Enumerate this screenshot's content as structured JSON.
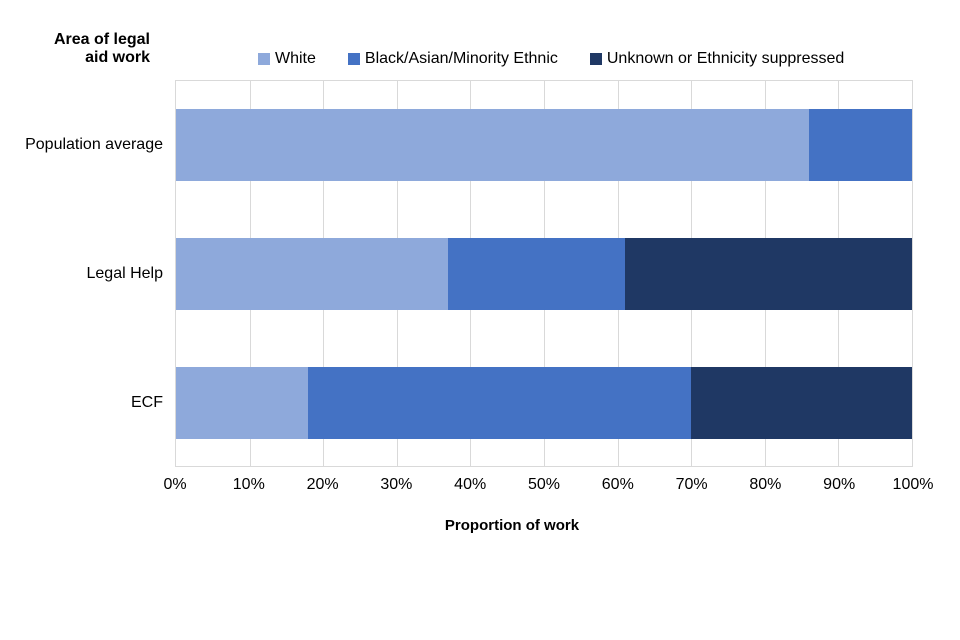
{
  "title": {
    "line1": "Area of legal",
    "line2": "aid work"
  },
  "colors": {
    "series_white": "#8EA9DB",
    "series_bame": "#4472C4",
    "series_unknown": "#1F3864",
    "gridline": "#D9D9D9",
    "background": "#FFFFFF",
    "text": "#000000"
  },
  "chart_data": {
    "type": "bar",
    "orientation": "horizontal-stacked",
    "title": "Area of legal aid work",
    "xlabel": "Proportion of work",
    "ylabel": "Area of legal aid work",
    "categories": [
      "Population average",
      "Legal Help",
      "ECF"
    ],
    "series": [
      {
        "name": "White",
        "color": "#8EA9DB",
        "values": [
          86,
          37,
          18
        ]
      },
      {
        "name": "Black/Asian/Minority Ethnic",
        "color": "#4472C4",
        "values": [
          14,
          24,
          52
        ]
      },
      {
        "name": "Unknown or Ethnicity suppressed",
        "color": "#1F3864",
        "values": [
          0,
          39,
          30
        ]
      }
    ],
    "x_ticks": [
      "0%",
      "10%",
      "20%",
      "30%",
      "40%",
      "50%",
      "60%",
      "70%",
      "80%",
      "90%",
      "100%"
    ],
    "xlim": [
      0,
      100
    ],
    "grid": true,
    "legend_position": "top"
  }
}
